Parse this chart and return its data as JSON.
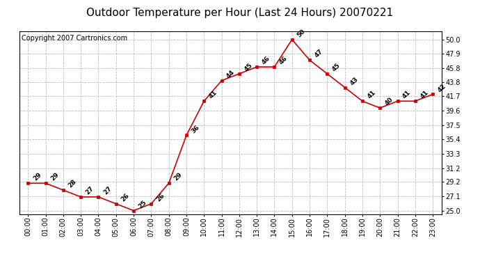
{
  "title": "Outdoor Temperature per Hour (Last 24 Hours) 20070221",
  "copyright": "Copyright 2007 Cartronics.com",
  "hours": [
    "00:00",
    "01:00",
    "02:00",
    "03:00",
    "04:00",
    "05:00",
    "06:00",
    "07:00",
    "08:00",
    "09:00",
    "10:00",
    "11:00",
    "12:00",
    "13:00",
    "14:00",
    "15:00",
    "16:00",
    "17:00",
    "18:00",
    "19:00",
    "20:00",
    "21:00",
    "22:00",
    "23:00"
  ],
  "temps": [
    29,
    29,
    28,
    27,
    27,
    26,
    25,
    26,
    29,
    36,
    41,
    44,
    45,
    46,
    46,
    50,
    47,
    45,
    43,
    41,
    40,
    41,
    41,
    42
  ],
  "line_color": "#cc0000",
  "marker_color": "#cc0000",
  "bg_color": "#ffffff",
  "grid_color": "#bbbbbb",
  "y_ticks": [
    25.0,
    27.1,
    29.2,
    31.2,
    33.3,
    35.4,
    37.5,
    39.6,
    41.7,
    43.8,
    45.8,
    47.9,
    50.0
  ],
  "ylim": [
    24.5,
    51.2
  ],
  "title_fontsize": 11,
  "label_fontsize": 7,
  "annot_fontsize": 6.5,
  "copyright_fontsize": 7
}
